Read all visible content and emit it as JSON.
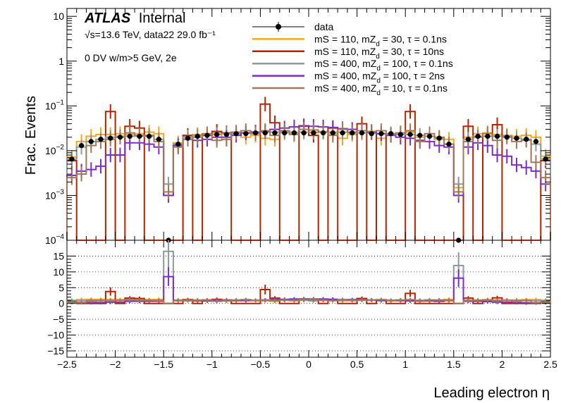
{
  "chart_data": {
    "type": "step-histogram",
    "experiment_label": "ATLAS",
    "experiment_status": "Internal",
    "energy_label": "√s=13.6 TeV, data22 29.0 fb⁻¹",
    "selection_label": "0 DV w/m>5 GeV, 2e",
    "xlabel": "Leading electron η",
    "ylabel": "Frac. Events",
    "xlim": [
      -2.5,
      2.5
    ],
    "x_ticks": [
      "−2.5",
      "−2",
      "−1.5",
      "−1",
      "−0.5",
      "0",
      "0.5",
      "1",
      "1.5",
      "2",
      "2.5"
    ],
    "top_panel": {
      "yscale": "log",
      "ylim": [
        0.0001,
        15
      ],
      "y_ticks": [
        {
          "value": 10,
          "mantissa": "10",
          "exponent": ""
        },
        {
          "value": 1,
          "mantissa": "1",
          "exponent": ""
        },
        {
          "value": 0.1,
          "mantissa": "10",
          "exponent": "−1"
        },
        {
          "value": 0.01,
          "mantissa": "10",
          "exponent": "−2"
        },
        {
          "value": 0.001,
          "mantissa": "10",
          "exponent": "−3"
        },
        {
          "value": 0.0001,
          "mantissa": "10",
          "exponent": "−4"
        }
      ]
    },
    "ratio_panel": {
      "ylim": [
        -17,
        20
      ],
      "y_ticks": [
        "15",
        "10",
        "5",
        "0",
        "−5",
        "−10",
        "−15"
      ],
      "grid": "dotted horizontal"
    },
    "bins": {
      "start": -2.5,
      "width": 0.1,
      "count": 50
    },
    "series": [
      {
        "name": "data",
        "style": "markers",
        "color": "#000000",
        "values": [
          0.0065,
          0.013,
          0.016,
          0.018,
          0.019,
          0.02,
          0.021,
          0.021,
          0.021,
          0.018,
          0.0001,
          0.014,
          0.019,
          0.021,
          0.022,
          0.023,
          0.023,
          0.024,
          0.024,
          0.025,
          0.025,
          0.025,
          0.025,
          0.025,
          0.025,
          0.025,
          0.025,
          0.025,
          0.025,
          0.025,
          0.025,
          0.024,
          0.024,
          0.024,
          0.023,
          0.023,
          0.022,
          0.021,
          0.019,
          0.014,
          0.0001,
          0.018,
          0.021,
          0.021,
          0.021,
          0.02,
          0.019,
          0.018,
          0.016,
          0.0065
        ]
      },
      {
        "name": "mS = 110, mZ_d = 30, τ = 0.1ns",
        "name_parts": [
          "mS = 110, mZ",
          "d",
          " = 30, τ = 0.1ns"
        ],
        "style": "step",
        "color": "#f5a623",
        "values": [
          0.0072,
          0.016,
          0.021,
          0.023,
          0.023,
          0.024,
          0.023,
          0.024,
          0.026,
          0.024,
          0.001,
          0.015,
          0.021,
          0.023,
          0.023,
          0.025,
          0.018,
          0.025,
          0.02,
          0.022,
          0.019,
          0.018,
          0.025,
          0.024,
          0.026,
          0.025,
          0.027,
          0.024,
          0.019,
          0.023,
          0.028,
          0.025,
          0.019,
          0.023,
          0.025,
          0.026,
          0.02,
          0.024,
          0.018,
          0.018,
          0.0015,
          0.02,
          0.024,
          0.025,
          0.023,
          0.022,
          0.021,
          0.022,
          0.02,
          0.0075
        ],
        "ratio": [
          0.8,
          1.2,
          1.3,
          1.3,
          1.2,
          1.2,
          1.1,
          1.1,
          1.2,
          1.3,
          0,
          1.1,
          1.1,
          1.1,
          1.0,
          1.1,
          0.8,
          1.0,
          0.8,
          0.9,
          0.8,
          0.7,
          1.0,
          1.0,
          1.0,
          1.0,
          1.1,
          1.0,
          0.8,
          0.9,
          1.1,
          1.0,
          0.8,
          1.0,
          1.1,
          1.1,
          0.9,
          1.1,
          0.9,
          1.3,
          0,
          1.1,
          1.1,
          1.2,
          1.1,
          1.1,
          1.1,
          1.2,
          1.2,
          0.8
        ]
      },
      {
        "name": "mS = 110, mZ_d = 30, τ = 10ns",
        "name_parts": [
          "mS = 110, mZ",
          "d",
          " = 30, τ = 10ns"
        ],
        "style": "step",
        "color": "#b22500",
        "values": [
          0.006,
          0.0001,
          0.0001,
          0.0001,
          0.075,
          0.0001,
          0.035,
          0.032,
          0.0001,
          0.0001,
          0.0001,
          0.0001,
          0.022,
          0.0001,
          0.022,
          0.027,
          0.025,
          0.0001,
          0.0001,
          0.0001,
          0.11,
          0.042,
          0.0001,
          0.0001,
          0.036,
          0.022,
          0.0001,
          0.032,
          0.0001,
          0.0001,
          0.04,
          0.0001,
          0.024,
          0.0001,
          0.0001,
          0.075,
          0.0001,
          0.0001,
          0.0001,
          0.0001,
          0.0001,
          0.035,
          0.0001,
          0.021,
          0.038,
          0.0001,
          0.0001,
          0.0001,
          0.0001,
          0.006
        ],
        "ratio": [
          0.8,
          0,
          0,
          0,
          3.8,
          0,
          1.7,
          1.6,
          0,
          0,
          0,
          0,
          1.2,
          0,
          1.1,
          1.3,
          1.1,
          0,
          0,
          0,
          4.4,
          1.7,
          0,
          0,
          1.4,
          0.9,
          0,
          1.3,
          0,
          0,
          1.6,
          0,
          1.0,
          0,
          0,
          3.2,
          0,
          0,
          0,
          0,
          0,
          1.7,
          0,
          1.0,
          1.8,
          0,
          0,
          0,
          0,
          0.8
        ]
      },
      {
        "name": "mS = 400, mZ_d = 100, τ = 0.1ns",
        "name_parts": [
          "mS = 400, mZ",
          "d",
          " = 100, τ = 0.1ns"
        ],
        "style": "step",
        "color": "#8c9a9a",
        "values": [
          0.0065,
          0.012,
          0.016,
          0.018,
          0.02,
          0.021,
          0.021,
          0.021,
          0.021,
          0.018,
          0.0018,
          0.014,
          0.02,
          0.022,
          0.023,
          0.023,
          0.024,
          0.024,
          0.025,
          0.026,
          0.026,
          0.026,
          0.026,
          0.026,
          0.026,
          0.026,
          0.026,
          0.026,
          0.026,
          0.025,
          0.025,
          0.025,
          0.024,
          0.024,
          0.023,
          0.023,
          0.022,
          0.021,
          0.019,
          0.014,
          0.0018,
          0.018,
          0.021,
          0.021,
          0.021,
          0.02,
          0.019,
          0.018,
          0.014,
          0.0065
        ],
        "ratio": [
          1.0,
          0.9,
          1.0,
          1.0,
          1.0,
          1.0,
          1.0,
          1.0,
          1.0,
          1.0,
          16.5,
          1.0,
          1.0,
          1.0,
          1.0,
          1.0,
          1.0,
          1.0,
          1.0,
          1.0,
          1.0,
          1.0,
          1.0,
          1.0,
          1.0,
          1.0,
          1.0,
          1.0,
          1.0,
          1.0,
          1.0,
          1.0,
          1.0,
          1.0,
          1.0,
          1.0,
          1.0,
          1.0,
          1.0,
          1.0,
          12.0,
          1.0,
          1.0,
          1.0,
          1.0,
          1.0,
          1.0,
          1.0,
          0.9,
          1.0
        ]
      },
      {
        "name": "mS = 400, mZ_d = 100, τ = 2ns",
        "name_parts": [
          "mS = 400, mZ",
          "d",
          " = 100, τ = 2ns"
        ],
        "style": "step",
        "color": "#7b2fbe",
        "values": [
          0.0028,
          0.0035,
          0.0038,
          0.0045,
          0.008,
          0.008,
          0.015,
          0.015,
          0.014,
          0.012,
          0.001,
          0.013,
          0.018,
          0.017,
          0.018,
          0.02,
          0.02,
          0.022,
          0.025,
          0.026,
          0.027,
          0.03,
          0.032,
          0.034,
          0.035,
          0.035,
          0.034,
          0.033,
          0.031,
          0.03,
          0.028,
          0.026,
          0.024,
          0.022,
          0.02,
          0.019,
          0.017,
          0.016,
          0.013,
          0.012,
          0.001,
          0.012,
          0.015,
          0.013,
          0.008,
          0.0075,
          0.0048,
          0.0042,
          0.0035,
          0.0018
        ],
        "ratio": [
          0.4,
          0.3,
          0.3,
          0.3,
          0.4,
          0.4,
          0.7,
          0.7,
          0.7,
          0.7,
          8.5,
          0.9,
          0.9,
          0.8,
          0.8,
          0.9,
          0.9,
          0.9,
          1.0,
          1.0,
          1.1,
          1.2,
          1.3,
          1.4,
          1.4,
          1.4,
          1.4,
          1.3,
          1.2,
          1.2,
          1.1,
          1.1,
          1.0,
          0.9,
          0.9,
          0.8,
          0.8,
          0.8,
          0.7,
          0.9,
          8.0,
          0.7,
          0.7,
          0.6,
          0.4,
          0.4,
          0.3,
          0.2,
          0.2,
          0.3
        ]
      },
      {
        "name": "mS = 400, mZ_d = 10, τ = 0.1ns",
        "name_parts": [
          "mS = 400, mZ",
          "d",
          " = 10, τ = 0.1ns"
        ],
        "style": "step",
        "color": "#a0785a",
        "values": [
          0.0025,
          0.003,
          0.013,
          0.016,
          0.018,
          0.02,
          0.025,
          0.022,
          0.022,
          0.016,
          0.0012,
          0.012,
          0.018,
          0.02,
          0.024,
          0.017,
          0.018,
          0.026,
          0.028,
          0.024,
          0.028,
          0.022,
          0.028,
          0.023,
          0.03,
          0.029,
          0.026,
          0.022,
          0.03,
          0.026,
          0.028,
          0.027,
          0.028,
          0.023,
          0.025,
          0.028,
          0.016,
          0.024,
          0.02,
          0.014,
          0.0012,
          0.016,
          0.02,
          0.024,
          0.017,
          0.021,
          0.016,
          0.017,
          0.0055,
          0.0025
        ],
        "ratio": [
          0.4,
          0.3,
          0.8,
          0.9,
          0.9,
          1.0,
          1.2,
          1.0,
          1.0,
          0.9,
          0,
          0.9,
          0.9,
          1.0,
          1.1,
          0.7,
          0.8,
          1.1,
          1.2,
          1.0,
          1.1,
          0.9,
          1.1,
          0.9,
          1.2,
          1.2,
          1.0,
          0.9,
          1.2,
          1.0,
          1.1,
          1.1,
          1.2,
          1.0,
          1.1,
          1.2,
          0.7,
          1.1,
          1.1,
          1.0,
          0,
          0.9,
          1.0,
          1.1,
          0.8,
          1.0,
          0.8,
          0.9,
          0.3,
          0.4
        ]
      }
    ]
  }
}
